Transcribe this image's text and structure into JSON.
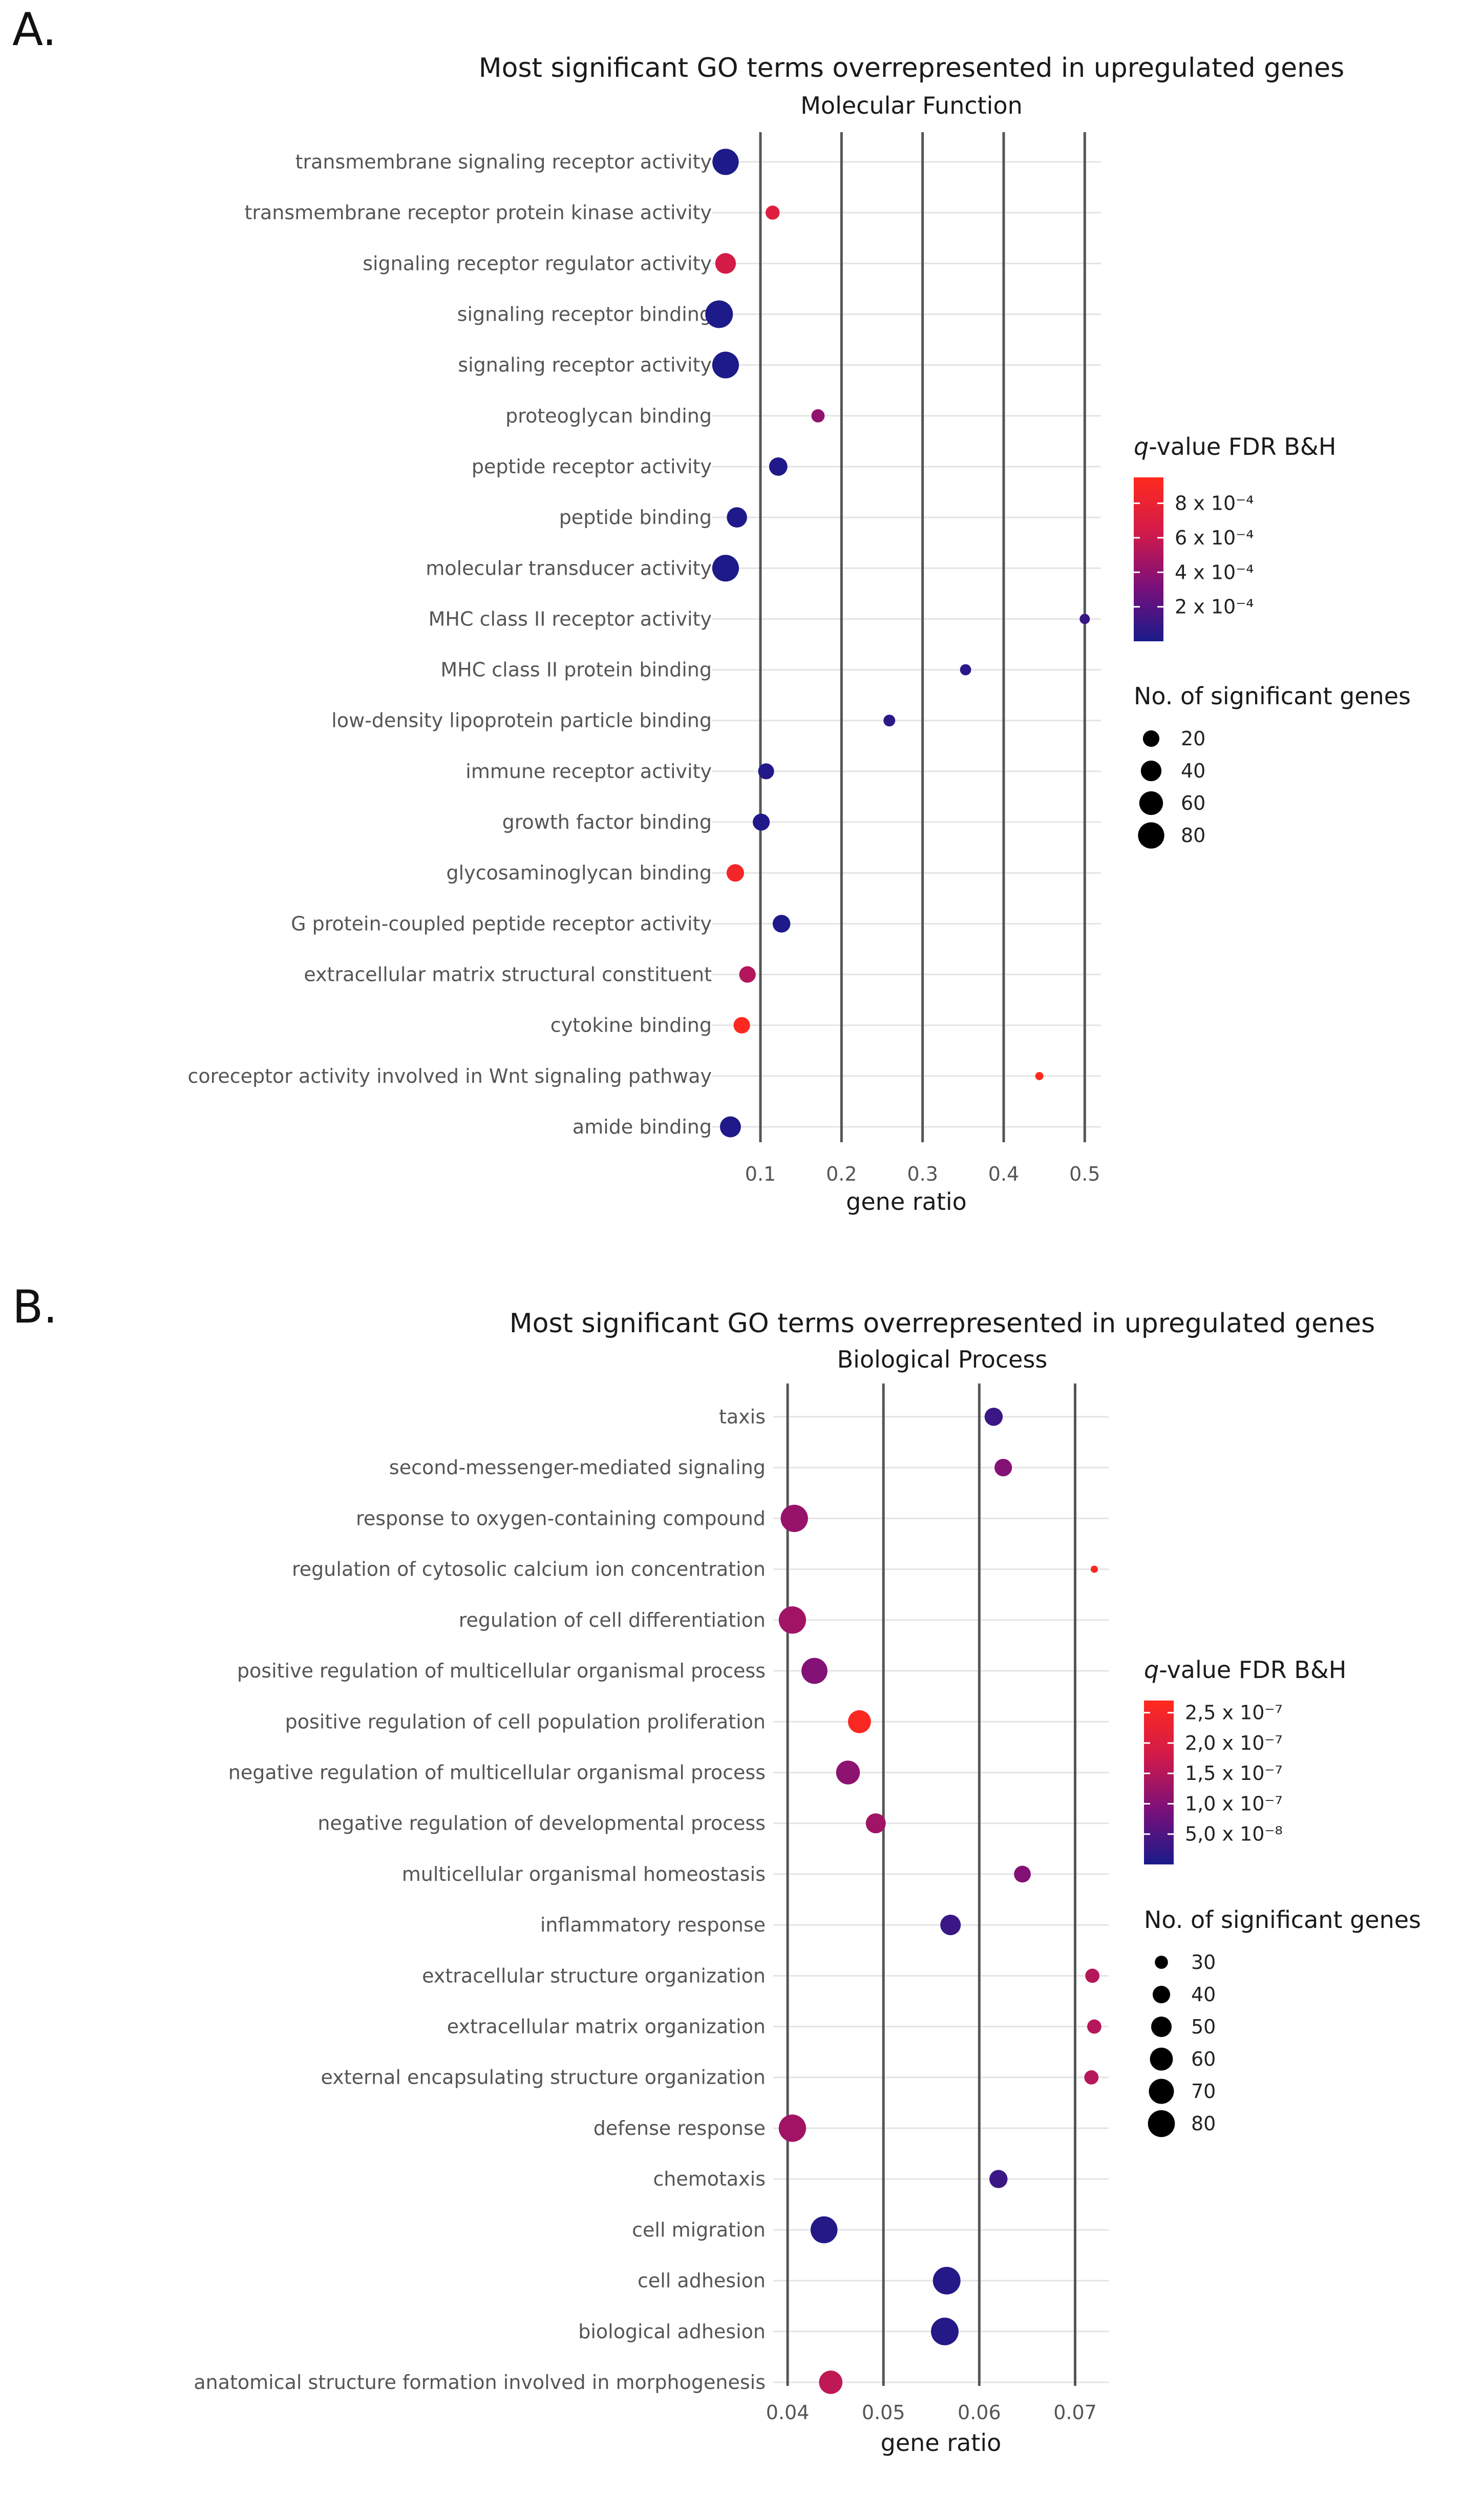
{
  "figure": {
    "panel_a_letter": "A.",
    "panel_b_letter": "B."
  },
  "chart_data": [
    {
      "type": "scatter",
      "panel": "A.",
      "title": "Most significant GO terms overrepresented in upregulated genes",
      "subtitle": "Molecular Function",
      "xlabel": "gene ratio",
      "ylabel": "",
      "xlim": [
        0.04,
        0.52
      ],
      "xticks": [
        0.1,
        0.2,
        0.3,
        0.4,
        0.5
      ],
      "xtick_labels": [
        "0.1",
        "0.2",
        "0.3",
        "0.4",
        "0.5"
      ],
      "grid": true,
      "color_legend": {
        "title_italic": "q",
        "title_rest": "-value FDR B&H",
        "min": 0.0,
        "max": 0.00095,
        "colors": [
          "#1a1a8a",
          "#7a107a",
          "#d21a4a",
          "#ff2a1e"
        ],
        "ticks": [
          0.0008,
          0.0006,
          0.0004,
          0.0002
        ],
        "tick_labels": [
          "8 x 10⁻⁴",
          "6 x 10⁻⁴",
          "4 x 10⁻⁴",
          "2 x 10⁻⁴"
        ]
      },
      "size_legend": {
        "title": "No. of significant genes",
        "values": [
          20,
          40,
          60,
          80
        ],
        "labels": [
          "20",
          "40",
          "60",
          "80"
        ]
      },
      "points": [
        {
          "term": "transmembrane signaling receptor activity",
          "gene_ratio": 0.057,
          "q_value": 1e-05,
          "genes": 80
        },
        {
          "term": "transmembrane receptor protein kinase activity",
          "gene_ratio": 0.115,
          "q_value": 0.00072,
          "genes": 12
        },
        {
          "term": "signaling receptor regulator activity",
          "gene_ratio": 0.057,
          "q_value": 0.00065,
          "genes": 40
        },
        {
          "term": "signaling receptor binding",
          "gene_ratio": 0.049,
          "q_value": 1e-05,
          "genes": 92
        },
        {
          "term": "signaling receptor activity",
          "gene_ratio": 0.057,
          "q_value": 1e-05,
          "genes": 84
        },
        {
          "term": "proteoglycan binding",
          "gene_ratio": 0.171,
          "q_value": 0.0004,
          "genes": 10
        },
        {
          "term": "peptide receptor activity",
          "gene_ratio": 0.122,
          "q_value": 2e-05,
          "genes": 28
        },
        {
          "term": "peptide binding",
          "gene_ratio": 0.071,
          "q_value": 2e-05,
          "genes": 38
        },
        {
          "term": "molecular transducer activity",
          "gene_ratio": 0.057,
          "q_value": 1e-05,
          "genes": 84
        },
        {
          "term": "MHC class II receptor activity",
          "gene_ratio": 0.5,
          "q_value": 0.0001,
          "genes": 5
        },
        {
          "term": "MHC class II protein binding",
          "gene_ratio": 0.353,
          "q_value": 5e-05,
          "genes": 6
        },
        {
          "term": "low-density lipoprotein particle binding",
          "gene_ratio": 0.259,
          "q_value": 6e-05,
          "genes": 7
        },
        {
          "term": "immune receptor activity",
          "gene_ratio": 0.107,
          "q_value": 3e-05,
          "genes": 18
        },
        {
          "term": "growth factor binding",
          "gene_ratio": 0.101,
          "q_value": 2e-05,
          "genes": 22
        },
        {
          "term": "glycosaminoglycan binding",
          "gene_ratio": 0.069,
          "q_value": 0.00088,
          "genes": 24
        },
        {
          "term": "G protein-coupled peptide receptor activity",
          "gene_ratio": 0.126,
          "q_value": 2e-05,
          "genes": 25
        },
        {
          "term": "extracellular matrix structural constituent",
          "gene_ratio": 0.084,
          "q_value": 0.00052,
          "genes": 20
        },
        {
          "term": "cytokine binding",
          "gene_ratio": 0.077,
          "q_value": 0.00093,
          "genes": 20
        },
        {
          "term": "coreceptor activity involved in Wnt signaling pathway",
          "gene_ratio": 0.444,
          "q_value": 0.00095,
          "genes": 4
        },
        {
          "term": "amide binding",
          "gene_ratio": 0.063,
          "q_value": 2e-05,
          "genes": 42
        }
      ]
    },
    {
      "type": "scatter",
      "panel": "B.",
      "title": "Most significant GO terms overrepresented in upregulated genes",
      "subtitle": "Biological Process",
      "xlabel": "gene ratio",
      "ylabel": "",
      "xlim": [
        0.0385,
        0.0735
      ],
      "xticks": [
        0.04,
        0.05,
        0.06,
        0.07
      ],
      "xtick_labels": [
        "0.04",
        "0.05",
        "0.06",
        "0.07"
      ],
      "grid": true,
      "color_legend": {
        "title_italic": "q",
        "title_rest": "-value FDR B&H",
        "min": 0.0,
        "max": 2.7e-07,
        "colors": [
          "#1a1a8a",
          "#7a107a",
          "#d21a4a",
          "#ff2a1e"
        ],
        "ticks": [
          2.5e-07,
          2e-07,
          1.5e-07,
          1e-07,
          5e-08
        ],
        "tick_labels": [
          "2,5 x 10⁻⁷",
          "2,0 x 10⁻⁷",
          "1,5 x 10⁻⁷",
          "1,0 x 10⁻⁷",
          "5,0 x 10⁻⁸"
        ]
      },
      "size_legend": {
        "title": "No. of significant genes",
        "values": [
          30,
          40,
          50,
          60,
          70,
          80
        ],
        "labels": [
          "30",
          "40",
          "50",
          "60",
          "70",
          "80"
        ]
      },
      "points": [
        {
          "term": "taxis",
          "gene_ratio": 0.0615,
          "q_value": 3e-08,
          "genes": 42
        },
        {
          "term": "second-messenger-mediated signaling",
          "gene_ratio": 0.0625,
          "q_value": 1e-07,
          "genes": 40
        },
        {
          "term": "response to oxygen-containing compound",
          "gene_ratio": 0.0407,
          "q_value": 1.2e-07,
          "genes": 82
        },
        {
          "term": "regulation of cytosolic calcium ion concentration",
          "gene_ratio": 0.072,
          "q_value": 2.6e-07,
          "genes": 25
        },
        {
          "term": "regulation of cell differentiation",
          "gene_ratio": 0.0405,
          "q_value": 1.3e-07,
          "genes": 82
        },
        {
          "term": "positive regulation of multicellular organismal process",
          "gene_ratio": 0.0428,
          "q_value": 1e-07,
          "genes": 75
        },
        {
          "term": "positive regulation of cell population proliferation",
          "gene_ratio": 0.0475,
          "q_value": 2.6e-07,
          "genes": 60
        },
        {
          "term": "negative regulation of multicellular organismal process",
          "gene_ratio": 0.0463,
          "q_value": 1.1e-07,
          "genes": 64
        },
        {
          "term": "negative regulation of developmental process",
          "gene_ratio": 0.0492,
          "q_value": 1.3e-07,
          "genes": 48
        },
        {
          "term": "multicellular organismal homeostasis",
          "gene_ratio": 0.0645,
          "q_value": 1e-07,
          "genes": 38
        },
        {
          "term": "inflammatory response",
          "gene_ratio": 0.057,
          "q_value": 3e-08,
          "genes": 50
        },
        {
          "term": "extracellular structure organization",
          "gene_ratio": 0.0718,
          "q_value": 1.5e-07,
          "genes": 32
        },
        {
          "term": "extracellular matrix organization",
          "gene_ratio": 0.072,
          "q_value": 1.5e-07,
          "genes": 32
        },
        {
          "term": "external encapsulating structure organization",
          "gene_ratio": 0.0717,
          "q_value": 1.5e-07,
          "genes": 32
        },
        {
          "term": "defense response",
          "gene_ratio": 0.0405,
          "q_value": 1.3e-07,
          "genes": 82
        },
        {
          "term": "chemotaxis",
          "gene_ratio": 0.062,
          "q_value": 3e-08,
          "genes": 42
        },
        {
          "term": "cell migration",
          "gene_ratio": 0.0438,
          "q_value": 1e-08,
          "genes": 80
        },
        {
          "term": "cell adhesion",
          "gene_ratio": 0.0566,
          "q_value": 1e-08,
          "genes": 84
        },
        {
          "term": "biological adhesion",
          "gene_ratio": 0.0564,
          "q_value": 1e-08,
          "genes": 84
        },
        {
          "term": "anatomical structure formation involved in morphogenesis",
          "gene_ratio": 0.0445,
          "q_value": 1.6e-07,
          "genes": 62
        }
      ]
    }
  ]
}
